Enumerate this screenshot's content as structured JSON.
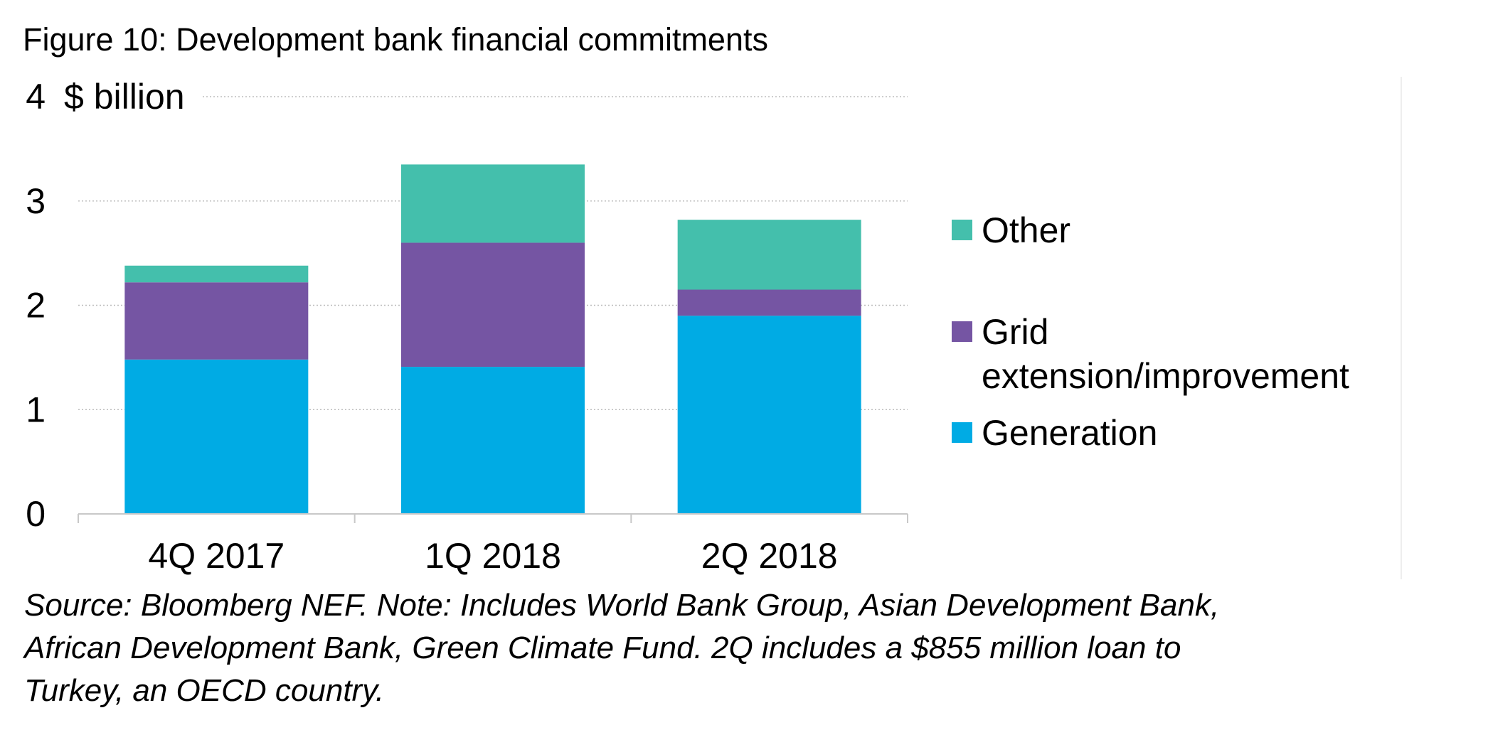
{
  "figure": {
    "title": "Figure 10: Development bank financial commitments",
    "source_lines": [
      "Source: Bloomberg NEF. Note: Includes World Bank Group, Asian Development Bank,",
      "African Development Bank, Green Climate Fund. 2Q includes a $855 million loan to",
      "Turkey, an OECD country."
    ]
  },
  "chart_data": {
    "type": "bar",
    "stacked": true,
    "title": "Figure 10: Development bank financial commitments",
    "ylabel": "$ billion",
    "xlabel": "",
    "ylim": [
      0,
      4
    ],
    "yticks": [
      0,
      1,
      2,
      3,
      4
    ],
    "grid": "horizontal, dotted",
    "legend_position": "right",
    "categories": [
      "4Q 2017",
      "1Q 2018",
      "2Q 2018"
    ],
    "series": [
      {
        "name": "Generation",
        "color": "#00ABE4",
        "values": [
          1.48,
          1.41,
          1.9
        ]
      },
      {
        "name": "Grid extension/improvement",
        "color": "#7555A3",
        "values": [
          0.74,
          1.19,
          0.25
        ]
      },
      {
        "name": "Other",
        "color": "#44BFAC",
        "values": [
          0.16,
          0.75,
          0.67
        ]
      }
    ],
    "legend_order": [
      "Other",
      "Grid extension/improvement",
      "Generation"
    ],
    "legend_label_lines": {
      "Other": [
        "Other"
      ],
      "Grid extension/improvement": [
        "Grid",
        "extension/improvement"
      ],
      "Generation": [
        "Generation"
      ]
    }
  }
}
